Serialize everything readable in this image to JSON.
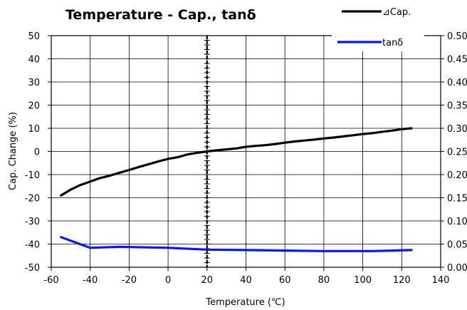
{
  "chart_data": {
    "type": "line",
    "title": "Temperature - Cap., tanδ",
    "xlabel": "Temperature (℃)",
    "ylabel": "Cap. Change (%)",
    "y2label": "",
    "xlim": [
      -60,
      140
    ],
    "ylim": [
      -50,
      50
    ],
    "y2lim": [
      0,
      0.5
    ],
    "x_ticks": [
      -60,
      -40,
      -20,
      0,
      20,
      40,
      60,
      80,
      100,
      120,
      140
    ],
    "x_tick_labels": [
      "-60",
      "-40",
      "-20",
      "0",
      "20",
      "40",
      "60",
      "80",
      "100",
      "120",
      "140"
    ],
    "y_ticks": [
      -50,
      -40,
      -30,
      -20,
      -10,
      0,
      10,
      20,
      30,
      40,
      50
    ],
    "y_tick_labels": [
      "-50",
      "-40",
      "-30",
      "-20",
      "-10",
      "0",
      "10",
      "20",
      "30",
      "40",
      "50"
    ],
    "y2_ticks": [
      0,
      0.05,
      0.1,
      0.15,
      0.2,
      0.25,
      0.3,
      0.35,
      0.4,
      0.45,
      0.5
    ],
    "y2_tick_labels": [
      "0.00",
      "0.05",
      "0.10",
      "0.15",
      "0.20",
      "0.25",
      "0.30",
      "0.35",
      "0.40",
      "0.45",
      "0.50"
    ],
    "grid": true,
    "reference_line_x": 20,
    "legend_position": "top-right",
    "series": [
      {
        "name": "⊿Cap.",
        "axis": "left",
        "color": "#000000",
        "x": [
          -55,
          -50,
          -45,
          -40,
          -35,
          -30,
          -25,
          -20,
          -15,
          -10,
          -5,
          0,
          5,
          10,
          15,
          20,
          25,
          30,
          35,
          40,
          45,
          50,
          55,
          60,
          65,
          70,
          75,
          80,
          85,
          90,
          95,
          100,
          105,
          110,
          115,
          120,
          125
        ],
        "values": [
          -19,
          -16.5,
          -14.5,
          -13,
          -11.5,
          -10.5,
          -9.2,
          -8,
          -6.7,
          -5.5,
          -4.3,
          -3.2,
          -2.5,
          -1.3,
          -0.6,
          0,
          0.5,
          0.9,
          1.3,
          2,
          2.4,
          2.7,
          3.2,
          3.8,
          4.3,
          4.7,
          5.1,
          5.6,
          6,
          6.5,
          7,
          7.5,
          7.9,
          8.5,
          9,
          9.6,
          10
        ]
      },
      {
        "name": "tanδ",
        "axis": "right",
        "color": "#0018ff",
        "x": [
          -55,
          -40,
          -25,
          0,
          20,
          40,
          60,
          80,
          90,
          105,
          115,
          125
        ],
        "values": [
          0.065,
          0.042,
          0.044,
          0.042,
          0.038,
          0.037,
          0.036,
          0.035,
          0.035,
          0.035,
          0.036,
          0.037
        ]
      }
    ]
  }
}
